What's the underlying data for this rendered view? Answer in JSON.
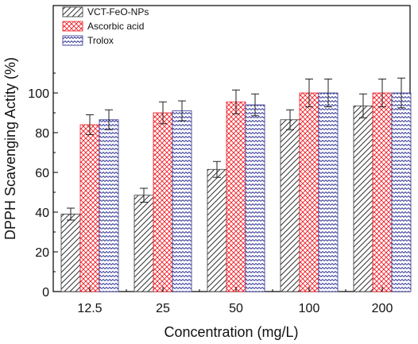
{
  "chart_data": {
    "type": "bar",
    "title": "",
    "xlabel": "Concentration (mg/L)",
    "ylabel": "DPPH Scavenging Actity (%)",
    "ylim": [
      0,
      120
    ],
    "yticks": [
      0,
      20,
      40,
      60,
      80,
      100
    ],
    "categories": [
      "12.5",
      "25",
      "50",
      "100",
      "200"
    ],
    "legend_position": "top-left",
    "grid": false,
    "series": [
      {
        "name": "VCT-FeO-NPs",
        "color": "#333333",
        "pattern": "diagonal-hatch",
        "values": [
          39,
          48.5,
          61.5,
          86.5,
          93.5
        ],
        "errors": [
          3,
          3.5,
          4,
          5,
          6
        ]
      },
      {
        "name": "Ascorbic acid",
        "color": "#ee1c24",
        "pattern": "cross-hatch",
        "values": [
          84,
          90,
          95.5,
          100,
          100
        ],
        "errors": [
          5,
          5.5,
          6,
          7,
          7
        ]
      },
      {
        "name": "Trolox",
        "color": "#2e3192",
        "pattern": "wavy",
        "values": [
          86.5,
          91,
          94,
          100,
          100
        ],
        "errors": [
          5,
          5,
          5.5,
          7,
          7.5
        ]
      }
    ]
  }
}
